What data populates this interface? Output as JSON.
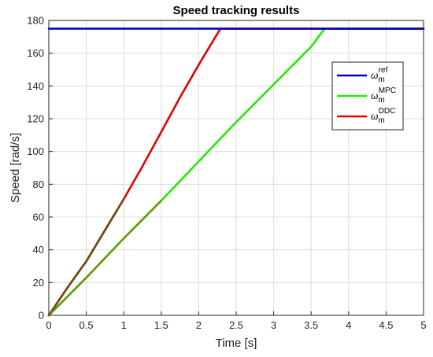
{
  "chart_data": {
    "type": "line",
    "title": "Speed tracking results",
    "xlabel": "Time [s]",
    "ylabel": "Speed [rad/s]",
    "xlim": [
      0,
      5
    ],
    "ylim": [
      0,
      180
    ],
    "xticks": [
      0,
      0.5,
      1,
      1.5,
      2,
      2.5,
      3,
      3.5,
      4,
      4.5,
      5
    ],
    "xtick_labels": [
      "0",
      "0.5",
      "1",
      "1.5",
      "2",
      "2.5",
      "3",
      "3.5",
      "4",
      "4.5",
      "5"
    ],
    "yticks": [
      0,
      20,
      40,
      60,
      80,
      100,
      120,
      140,
      160,
      180
    ],
    "ytick_labels": [
      "0",
      "20",
      "40",
      "60",
      "80",
      "100",
      "120",
      "140",
      "160",
      "180"
    ],
    "grid": true,
    "legend_position": "top-right",
    "series": [
      {
        "name_base": "ω",
        "name_sub": "m",
        "name_sup": "ref",
        "color": "#0000CC",
        "x": [
          0,
          5
        ],
        "y": [
          175,
          175
        ]
      },
      {
        "name_base": "ω",
        "name_sub": "m",
        "name_sup": "MPC",
        "color": "#22EE00",
        "x": [
          0,
          0.5,
          1,
          1.5,
          2,
          2.5,
          3,
          3.5,
          3.68,
          5
        ],
        "y": [
          0,
          23,
          47,
          70,
          94,
          118,
          141,
          164,
          175,
          175
        ]
      },
      {
        "name_base": "ω",
        "name_sub": "m",
        "name_sup": "DDC",
        "color": "#E60000",
        "x": [
          0,
          0.25,
          0.5,
          0.75,
          1,
          1.25,
          1.5,
          1.75,
          2,
          2.29,
          5
        ],
        "y": [
          0,
          17,
          33,
          52,
          71,
          91,
          112,
          133,
          153,
          175,
          175
        ]
      }
    ],
    "overlap_color": "#6B4A10"
  }
}
